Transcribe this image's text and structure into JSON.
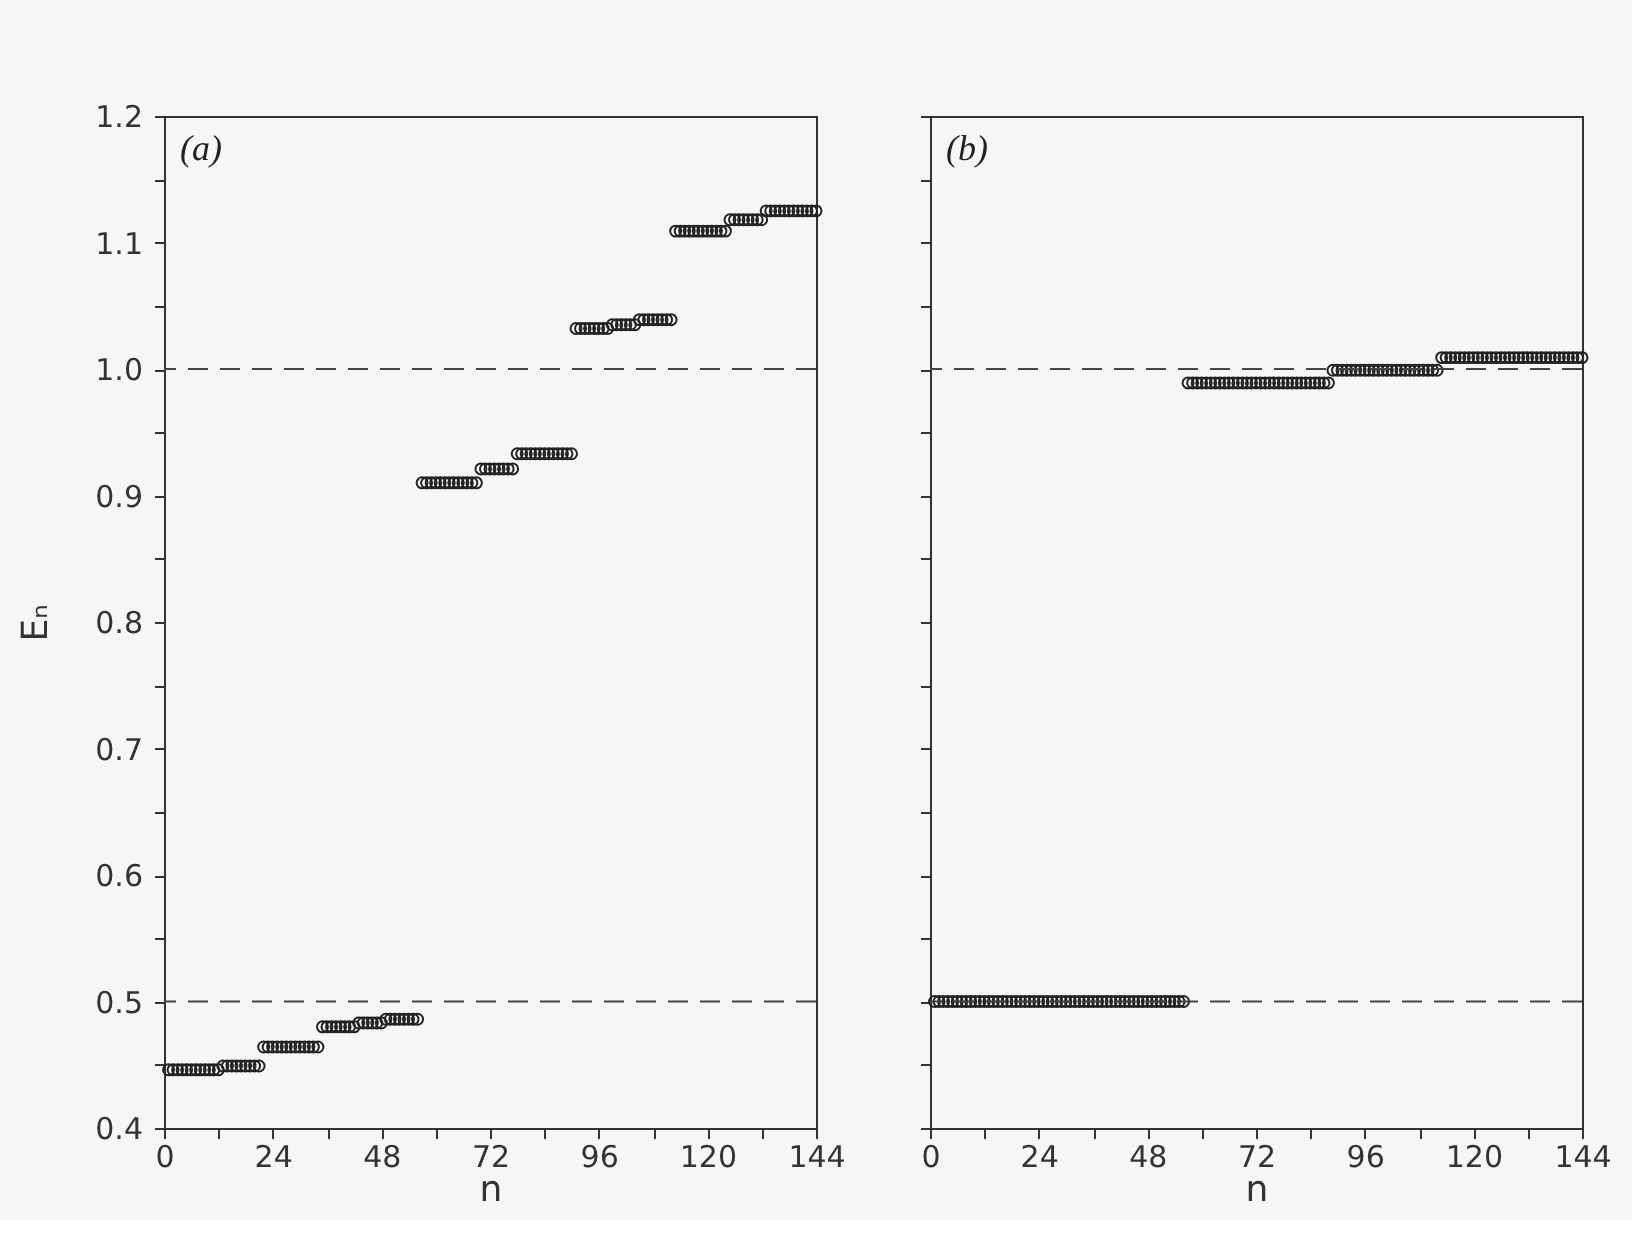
{
  "chart_data": [
    {
      "type": "scatter",
      "xlabel": "n",
      "ylabel": "Eₙ",
      "annotations": [
        "(a)"
      ],
      "marker": "circle",
      "grid": false,
      "xlim": [
        0,
        144
      ],
      "ylim": [
        0.4,
        1.2
      ],
      "xticks": [
        0,
        {
          "value": 12,
          "label": null
        },
        24,
        {
          "value": 36,
          "label": null
        },
        48,
        {
          "value": 60,
          "label": null
        },
        72,
        {
          "value": 84,
          "label": null
        },
        96,
        {
          "value": 108,
          "label": null
        },
        120,
        {
          "value": 132,
          "label": null
        },
        144
      ],
      "yticks": [
        0.4,
        {
          "value": 0.45,
          "label": null
        },
        0.5,
        {
          "value": 0.55,
          "label": null
        },
        0.6,
        {
          "value": 0.65,
          "label": null
        },
        0.7,
        {
          "value": 0.75,
          "label": null
        },
        0.8,
        {
          "value": 0.85,
          "label": null
        },
        0.9,
        {
          "value": 0.95,
          "label": null
        },
        {
          "value": 1,
          "label": "1.0"
        },
        {
          "value": 1.05,
          "label": null
        },
        1.1,
        {
          "value": 1.15,
          "label": null
        },
        1.2
      ],
      "ref_lines": [
        {
          "axis": "y",
          "value": 1,
          "line_style": "dashed"
        },
        {
          "axis": "y",
          "value": 0.5,
          "line_style": "dashed"
        }
      ],
      "series": [
        {
          "color": "#222222",
          "x": [
            1,
            2,
            3,
            4,
            5,
            6,
            7,
            8,
            9,
            10,
            11,
            12,
            13,
            14,
            15,
            16,
            17,
            18,
            19,
            20,
            21,
            22,
            23,
            24,
            25,
            26,
            27,
            28,
            29,
            30,
            31,
            32,
            33,
            34,
            35,
            36,
            37,
            38,
            39,
            40,
            41,
            42,
            43,
            44,
            45,
            46,
            47,
            48,
            49,
            50,
            51,
            52,
            53,
            54,
            55,
            56,
            57,
            58,
            59,
            60,
            61,
            62,
            63,
            64,
            65,
            66,
            67,
            68,
            69,
            70,
            71,
            72,
            73,
            74,
            75,
            76,
            77,
            78,
            79,
            80,
            81,
            82,
            83,
            84,
            85,
            86,
            87,
            88,
            89,
            90,
            91,
            92,
            93,
            94,
            95,
            96,
            97,
            98,
            99,
            100,
            101,
            102,
            103,
            104,
            105,
            106,
            107,
            108,
            109,
            110,
            111,
            112,
            113,
            114,
            115,
            116,
            117,
            118,
            119,
            120,
            121,
            122,
            123,
            124,
            125,
            126,
            127,
            128,
            129,
            130,
            131,
            132,
            133,
            134,
            135,
            136,
            137,
            138,
            139,
            140,
            141,
            142,
            143,
            144
          ],
          "values": [
            0.446,
            0.446,
            0.446,
            0.446,
            0.446,
            0.446,
            0.446,
            0.446,
            0.446,
            0.446,
            0.446,
            0.446,
            0.449,
            0.449,
            0.449,
            0.449,
            0.449,
            0.449,
            0.449,
            0.449,
            0.449,
            0.464,
            0.464,
            0.464,
            0.464,
            0.464,
            0.464,
            0.464,
            0.464,
            0.464,
            0.464,
            0.464,
            0.464,
            0.464,
            0.48,
            0.48,
            0.48,
            0.48,
            0.48,
            0.48,
            0.48,
            0.48,
            0.483,
            0.483,
            0.483,
            0.483,
            0.483,
            0.483,
            0.486,
            0.486,
            0.486,
            0.486,
            0.486,
            0.486,
            0.486,
            0.486,
            0.91,
            0.91,
            0.91,
            0.91,
            0.91,
            0.91,
            0.91,
            0.91,
            0.91,
            0.91,
            0.91,
            0.91,
            0.91,
            0.921,
            0.921,
            0.921,
            0.921,
            0.921,
            0.921,
            0.921,
            0.921,
            0.933,
            0.933,
            0.933,
            0.933,
            0.933,
            0.933,
            0.933,
            0.933,
            0.933,
            0.933,
            0.933,
            0.933,
            0.933,
            1.032,
            1.032,
            1.032,
            1.032,
            1.032,
            1.032,
            1.032,
            1.032,
            1.035,
            1.035,
            1.035,
            1.035,
            1.035,
            1.035,
            1.039,
            1.039,
            1.039,
            1.039,
            1.039,
            1.039,
            1.039,
            1.039,
            1.109,
            1.109,
            1.109,
            1.109,
            1.109,
            1.109,
            1.109,
            1.109,
            1.109,
            1.109,
            1.109,
            1.109,
            1.118,
            1.118,
            1.118,
            1.118,
            1.118,
            1.118,
            1.118,
            1.118,
            1.125,
            1.125,
            1.125,
            1.125,
            1.125,
            1.125,
            1.125,
            1.125,
            1.125,
            1.125,
            1.125,
            1.125
          ]
        }
      ]
    },
    {
      "type": "scatter",
      "xlabel": "n",
      "annotations": [
        "(b)"
      ],
      "marker": "circle",
      "grid": false,
      "tick_labels": "x",
      "xlim": [
        0,
        144
      ],
      "ylim": [
        0.4,
        1.2
      ],
      "xticks": [
        0,
        {
          "value": 12,
          "label": null
        },
        24,
        {
          "value": 36,
          "label": null
        },
        48,
        {
          "value": 60,
          "label": null
        },
        72,
        {
          "value": 84,
          "label": null
        },
        96,
        {
          "value": 108,
          "label": null
        },
        120,
        {
          "value": 132,
          "label": null
        },
        144
      ],
      "yticks": [
        0.4,
        {
          "value": 0.45,
          "label": null
        },
        0.5,
        {
          "value": 0.55,
          "label": null
        },
        0.6,
        {
          "value": 0.65,
          "label": null
        },
        0.7,
        {
          "value": 0.75,
          "label": null
        },
        0.8,
        {
          "value": 0.85,
          "label": null
        },
        0.9,
        {
          "value": 0.95,
          "label": null
        },
        1,
        {
          "value": 1.05,
          "label": null
        },
        1.1,
        {
          "value": 1.15,
          "label": null
        },
        1.2
      ],
      "ref_lines": [
        {
          "axis": "y",
          "value": 1,
          "line_style": "dashed"
        },
        {
          "axis": "y",
          "value": 0.5,
          "line_style": "dashed"
        }
      ],
      "series": [
        {
          "color": "#222222",
          "x": [
            1,
            2,
            3,
            4,
            5,
            6,
            7,
            8,
            9,
            10,
            11,
            12,
            13,
            14,
            15,
            16,
            17,
            18,
            19,
            20,
            21,
            22,
            23,
            24,
            25,
            26,
            27,
            28,
            29,
            30,
            31,
            32,
            33,
            34,
            35,
            36,
            37,
            38,
            39,
            40,
            41,
            42,
            43,
            44,
            45,
            46,
            47,
            48,
            49,
            50,
            51,
            52,
            53,
            54,
            55,
            56,
            57,
            58,
            59,
            60,
            61,
            62,
            63,
            64,
            65,
            66,
            67,
            68,
            69,
            70,
            71,
            72,
            73,
            74,
            75,
            76,
            77,
            78,
            79,
            80,
            81,
            82,
            83,
            84,
            85,
            86,
            87,
            88,
            89,
            90,
            91,
            92,
            93,
            94,
            95,
            96,
            97,
            98,
            99,
            100,
            101,
            102,
            103,
            104,
            105,
            106,
            107,
            108,
            109,
            110,
            111,
            112,
            113,
            114,
            115,
            116,
            117,
            118,
            119,
            120,
            121,
            122,
            123,
            124,
            125,
            126,
            127,
            128,
            129,
            130,
            131,
            132,
            133,
            134,
            135,
            136,
            137,
            138,
            139,
            140,
            141,
            142,
            143,
            144
          ],
          "values": [
            0.5,
            0.5,
            0.5,
            0.5,
            0.5,
            0.5,
            0.5,
            0.5,
            0.5,
            0.5,
            0.5,
            0.5,
            0.5,
            0.5,
            0.5,
            0.5,
            0.5,
            0.5,
            0.5,
            0.5,
            0.5,
            0.5,
            0.5,
            0.5,
            0.5,
            0.5,
            0.5,
            0.5,
            0.5,
            0.5,
            0.5,
            0.5,
            0.5,
            0.5,
            0.5,
            0.5,
            0.5,
            0.5,
            0.5,
            0.5,
            0.5,
            0.5,
            0.5,
            0.5,
            0.5,
            0.5,
            0.5,
            0.5,
            0.5,
            0.5,
            0.5,
            0.5,
            0.5,
            0.5,
            0.5,
            0.5,
            0.989,
            0.989,
            0.989,
            0.989,
            0.989,
            0.989,
            0.989,
            0.989,
            0.989,
            0.989,
            0.989,
            0.989,
            0.989,
            0.989,
            0.989,
            0.989,
            0.989,
            0.989,
            0.989,
            0.989,
            0.989,
            0.989,
            0.989,
            0.989,
            0.989,
            0.989,
            0.989,
            0.989,
            0.989,
            0.989,
            0.989,
            0.989,
            0.999,
            0.999,
            0.999,
            0.999,
            0.999,
            0.999,
            0.999,
            0.999,
            0.999,
            0.999,
            0.999,
            0.999,
            0.999,
            0.999,
            0.999,
            0.999,
            0.999,
            0.999,
            0.999,
            0.999,
            0.999,
            0.999,
            0.999,
            0.999,
            1.009,
            1.009,
            1.009,
            1.009,
            1.009,
            1.009,
            1.009,
            1.009,
            1.009,
            1.009,
            1.009,
            1.009,
            1.009,
            1.009,
            1.009,
            1.009,
            1.009,
            1.009,
            1.009,
            1.009,
            1.009,
            1.009,
            1.009,
            1.009,
            1.009,
            1.009,
            1.009,
            1.009,
            1.009,
            1.009,
            1.009,
            1.009
          ]
        }
      ]
    }
  ]
}
